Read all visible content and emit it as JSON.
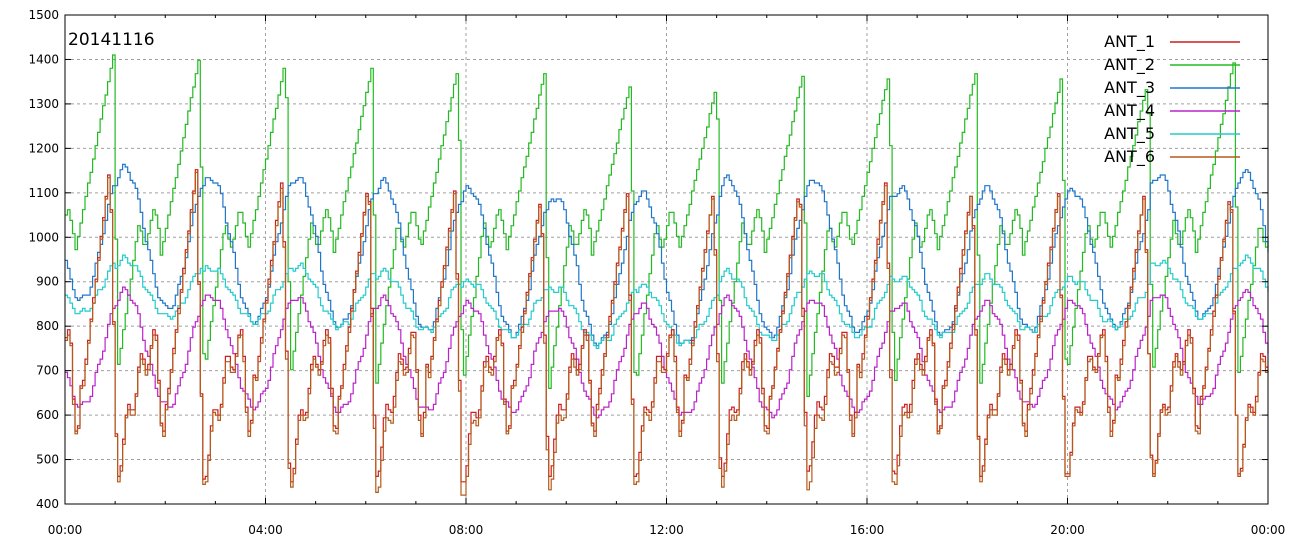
{
  "chart_data": {
    "type": "line",
    "title": "20141116",
    "xlabel": "",
    "ylabel": "",
    "x_ticks": [
      "00:00",
      "04:00",
      "08:00",
      "12:00",
      "16:00",
      "20:00",
      "00:00"
    ],
    "x_range_hours": [
      0,
      24
    ],
    "ylim": [
      400,
      1500
    ],
    "y_ticks": [
      400,
      500,
      600,
      700,
      800,
      900,
      1000,
      1100,
      1200,
      1300,
      1400,
      1500
    ],
    "grid": true,
    "legend_position": "top-right",
    "x_step_hours": 0.05,
    "series": [
      {
        "name": "ANT_1",
        "color": "#cc1f1f",
        "pattern": "ramp",
        "period_hours": 1.72,
        "phase_hours": 0.88,
        "base": 700,
        "peak_values": [
          1165,
          1150,
          1140,
          1130,
          1110,
          1100,
          1100,
          1110,
          1120,
          1130,
          1120,
          1100,
          1110,
          1110
        ],
        "trough_values": [
          480,
          470,
          460,
          455,
          470,
          450,
          470,
          465,
          470,
          480,
          475,
          470,
          470,
          475
        ]
      },
      {
        "name": "ANT_2",
        "color": "#22bb22",
        "pattern": "spike",
        "period_hours": 1.72,
        "phase_hours": 0.95,
        "base": 1020,
        "peak_values": [
          1410,
          1410,
          1400,
          1385,
          1385,
          1370,
          1350,
          1345,
          1370,
          1375,
          1370,
          1365,
          1355,
          1400,
          1400
        ],
        "trough_values": [
          690,
          700,
          690,
          680,
          670,
          660,
          650,
          650,
          650,
          640,
          650,
          660,
          680,
          690
        ]
      },
      {
        "name": "ANT_3",
        "color": "#1f77cc",
        "pattern": "wave",
        "period_hours": 1.72,
        "phase_hours": 1.0,
        "base": 1000,
        "peak_values": [
          1160,
          1155,
          1135,
          1135,
          1125,
          1110,
          1090,
          1100,
          1130,
          1130,
          1110,
          1110,
          1105,
          1140,
          1145
        ],
        "trough_values": [
          860,
          840,
          810,
          800,
          790,
          780,
          760,
          760,
          780,
          790,
          780,
          790,
          800,
          820,
          840
        ]
      },
      {
        "name": "ANT_4",
        "color": "#bb22cc",
        "pattern": "wave",
        "period_hours": 1.72,
        "phase_hours": 1.0,
        "base": 780,
        "peak_values": [
          880,
          880,
          870,
          865,
          860,
          850,
          840,
          845,
          860,
          860,
          850,
          850,
          855,
          870,
          875
        ],
        "trough_values": [
          620,
          620,
          620,
          610,
          610,
          610,
          600,
          600,
          600,
          610,
          610,
          620,
          620,
          630,
          650
        ]
      },
      {
        "name": "ANT_5",
        "color": "#22cccc",
        "pattern": "wave",
        "period_hours": 1.72,
        "phase_hours": 1.0,
        "base": 870,
        "peak_values": [
          960,
          950,
          930,
          935,
          920,
          900,
          885,
          890,
          920,
          920,
          910,
          910,
          905,
          945,
          950
        ],
        "trough_values": [
          830,
          820,
          810,
          800,
          790,
          780,
          760,
          760,
          770,
          780,
          780,
          790,
          800,
          820,
          830
        ]
      },
      {
        "name": "ANT_6",
        "color": "#b55a1a",
        "pattern": "ramp",
        "period_hours": 1.72,
        "phase_hours": 0.88,
        "base": 690,
        "peak_values": [
          1160,
          1145,
          1130,
          1125,
          1105,
          1095,
          1095,
          1105,
          1115,
          1125,
          1115,
          1095,
          1105,
          1105
        ],
        "trough_values": [
          470,
          460,
          450,
          440,
          430,
          420,
          440,
          450,
          445,
          440,
          450,
          460,
          465,
          470
        ]
      }
    ]
  }
}
